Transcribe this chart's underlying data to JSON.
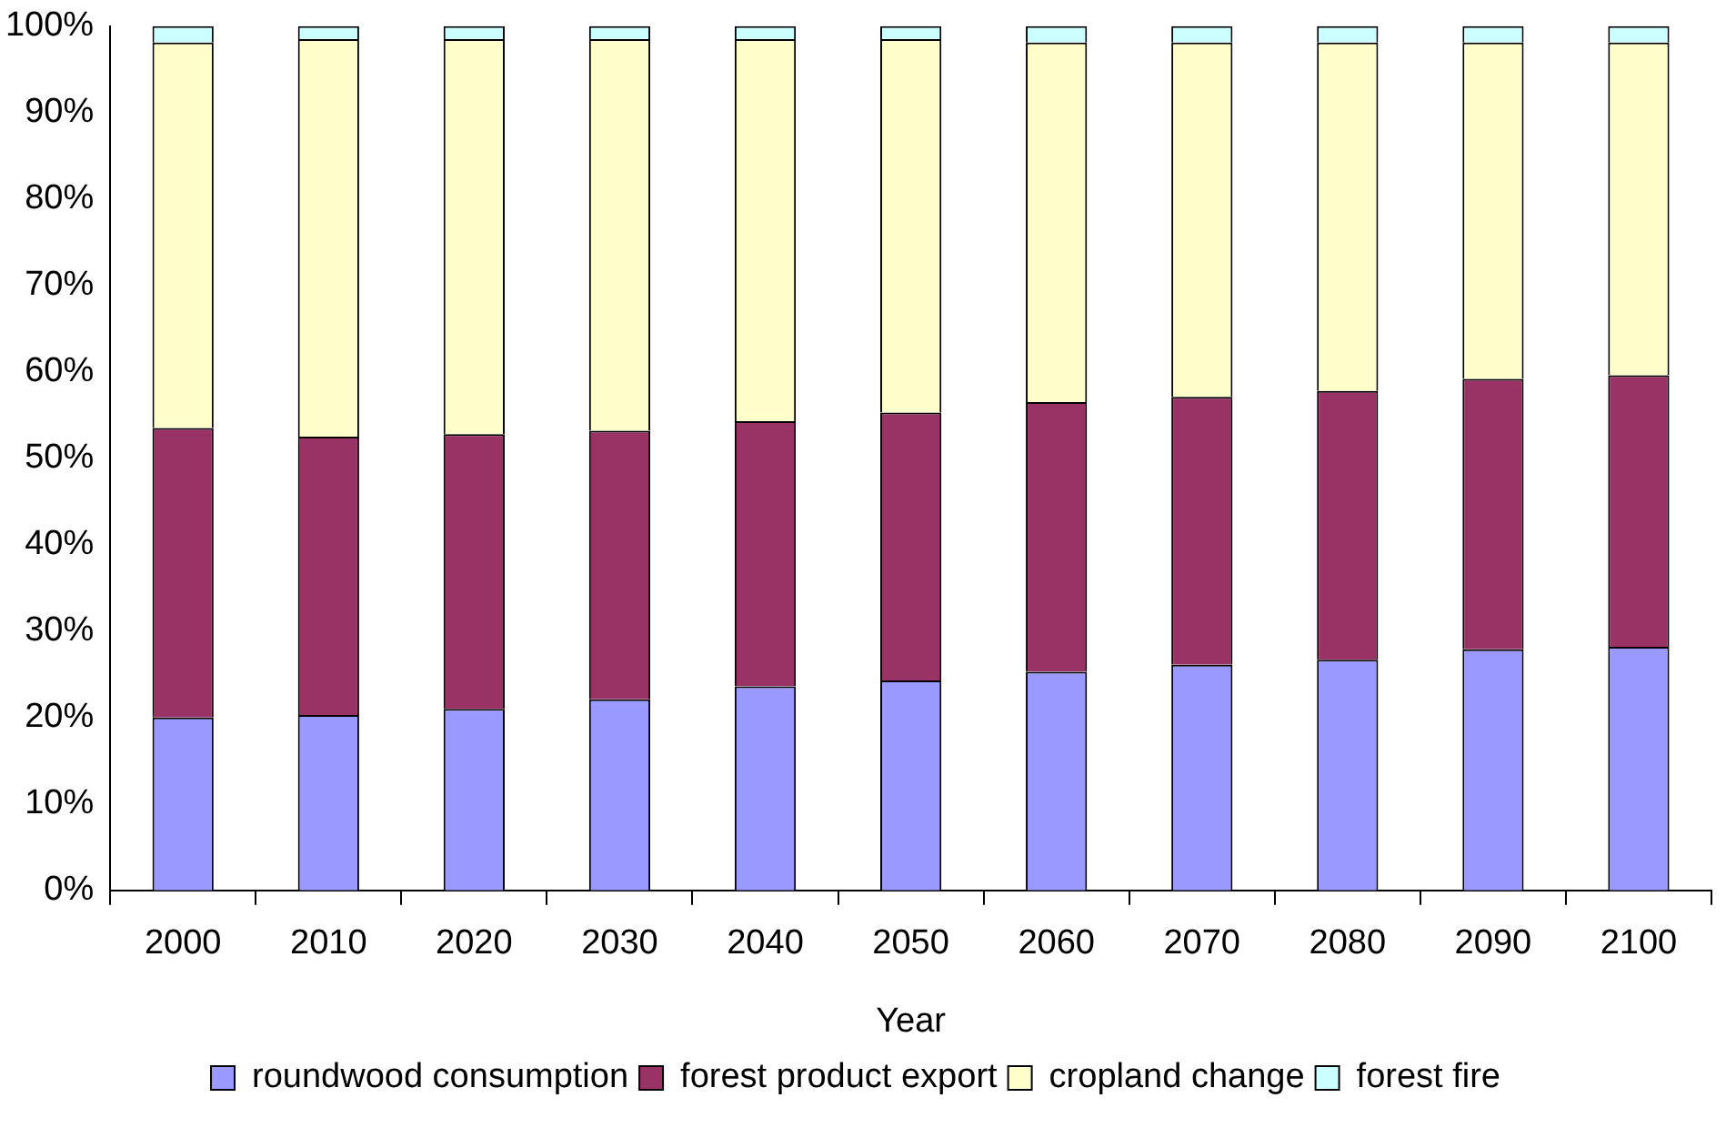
{
  "chart_data": {
    "type": "bar",
    "stacked": true,
    "xlabel": "Year",
    "categories": [
      "2000",
      "2010",
      "2020",
      "2030",
      "2040",
      "2050",
      "2060",
      "2070",
      "2080",
      "2090",
      "2100"
    ],
    "series": [
      {
        "name": "roundwood consumption",
        "color": "#9999ff",
        "values": [
          20.0,
          20.3,
          21.0,
          22.1,
          23.6,
          24.3,
          25.3,
          26.1,
          26.7,
          27.9,
          28.2
        ]
      },
      {
        "name": "forest product export",
        "color": "#993366",
        "values": [
          33.5,
          32.2,
          31.8,
          31.1,
          30.7,
          31.0,
          31.2,
          31.0,
          31.1,
          31.3,
          31.4
        ]
      },
      {
        "name": "cropland change",
        "color": "#ffffcc",
        "values": [
          44.6,
          46.0,
          45.7,
          45.3,
          44.2,
          43.2,
          41.6,
          41.0,
          40.3,
          38.9,
          38.5
        ]
      },
      {
        "name": "forest fire",
        "color": "#ccffff",
        "values": [
          1.9,
          1.5,
          1.5,
          1.5,
          1.5,
          1.5,
          1.9,
          1.9,
          1.9,
          1.9,
          1.9
        ]
      }
    ],
    "ylim": [
      0,
      100
    ],
    "yticks": [
      {
        "value": 0,
        "label": "0%"
      },
      {
        "value": 10,
        "label": "10%"
      },
      {
        "value": 20,
        "label": "20%"
      },
      {
        "value": 30,
        "label": "30%"
      },
      {
        "value": 40,
        "label": "40%"
      },
      {
        "value": 50,
        "label": "50%"
      },
      {
        "value": 60,
        "label": "60%"
      },
      {
        "value": 70,
        "label": "70%"
      },
      {
        "value": 80,
        "label": "80%"
      },
      {
        "value": 90,
        "label": "90%"
      },
      {
        "value": 100,
        "label": "100%"
      }
    ],
    "grid": false,
    "legend": "bottom"
  }
}
